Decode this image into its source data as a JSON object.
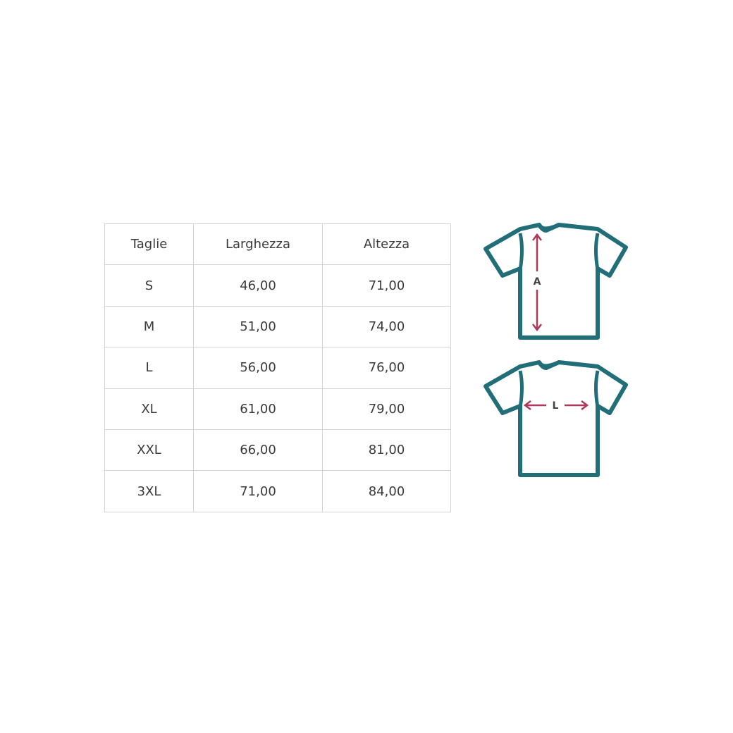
{
  "table": {
    "headers": [
      "Taglie",
      "Larghezza",
      "Altezza"
    ],
    "rows": [
      [
        "S",
        "46,00",
        "71,00"
      ],
      [
        "M",
        "51,00",
        "74,00"
      ],
      [
        "L",
        "56,00",
        "76,00"
      ],
      [
        "XL",
        "61,00",
        "79,00"
      ],
      [
        "XXL",
        "66,00",
        "81,00"
      ],
      [
        "3XL",
        "71,00",
        "84,00"
      ]
    ]
  },
  "diagrams": {
    "height_label": "A",
    "width_label": "L",
    "outline_color": "#226e78",
    "arrow_color": "#b0395a"
  }
}
